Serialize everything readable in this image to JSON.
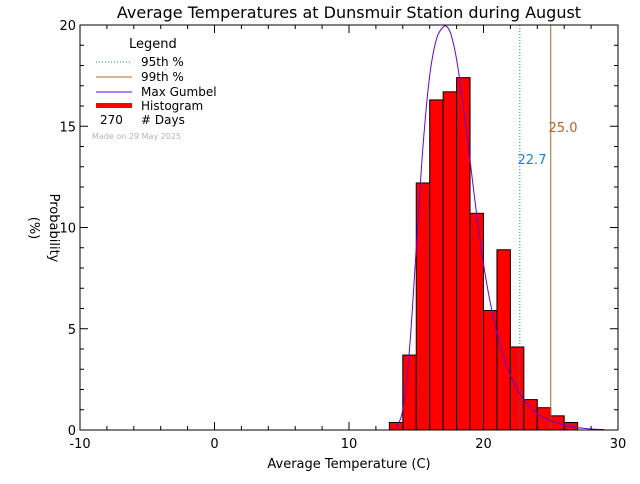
{
  "chart_data": {
    "type": "bar",
    "title": "Average Temperatures at Dunsmuir Station during August",
    "xlabel": "Average Temperature (C)",
    "ylabel_line1": "Probability",
    "ylabel_line2": "(%)",
    "xlim": [
      -10,
      30
    ],
    "ylim": [
      0,
      20
    ],
    "x_ticks": [
      -10,
      0,
      10,
      20,
      30
    ],
    "y_ticks": [
      0,
      5,
      10,
      15,
      20
    ],
    "bin_width": 1,
    "histogram": [
      {
        "x0": 13,
        "x1": 14,
        "value": 0.37
      },
      {
        "x0": 14,
        "x1": 15,
        "value": 3.7
      },
      {
        "x0": 15,
        "x1": 16,
        "value": 12.2
      },
      {
        "x0": 16,
        "x1": 17,
        "value": 16.3
      },
      {
        "x0": 17,
        "x1": 18,
        "value": 16.7
      },
      {
        "x0": 18,
        "x1": 19,
        "value": 17.4
      },
      {
        "x0": 19,
        "x1": 20,
        "value": 10.7
      },
      {
        "x0": 20,
        "x1": 21,
        "value": 5.9
      },
      {
        "x0": 21,
        "x1": 22,
        "value": 8.9
      },
      {
        "x0": 22,
        "x1": 23,
        "value": 4.1
      },
      {
        "x0": 23,
        "x1": 24,
        "value": 1.5
      },
      {
        "x0": 24,
        "x1": 25,
        "value": 1.1
      },
      {
        "x0": 25,
        "x1": 26,
        "value": 0.7
      },
      {
        "x0": 26,
        "x1": 27,
        "value": 0.37
      }
    ],
    "gumbel_curve": {
      "x": [
        13.5,
        14,
        14.5,
        15,
        15.5,
        16,
        16.5,
        17,
        17.3,
        17.6,
        18,
        18.5,
        19,
        19.5,
        20,
        20.5,
        21,
        21.5,
        22,
        22.5,
        23,
        24,
        25,
        26,
        27,
        28,
        29
      ],
      "y": [
        0.1,
        1.0,
        4.0,
        9.0,
        14.0,
        17.5,
        19.3,
        19.9,
        19.9,
        19.5,
        18.3,
        16.0,
        13.3,
        10.6,
        8.2,
        6.3,
        4.8,
        3.6,
        2.7,
        2.0,
        1.5,
        0.8,
        0.45,
        0.25,
        0.12,
        0.05,
        0.02
      ]
    },
    "percentile_95": {
      "value": 22.7,
      "label": "22.7",
      "color": "#1e7be0"
    },
    "percentile_99": {
      "value": 25.0,
      "label": "25.0",
      "color": "#b5641e"
    },
    "colors": {
      "histogram_fill": "#ff0000",
      "gumbel": "#6a00d8",
      "axes": "#000000"
    }
  },
  "legend": {
    "title": "Legend",
    "items": [
      {
        "label": "95th %",
        "style": "dotted",
        "color": "#1e7be0"
      },
      {
        "label": "99th %",
        "style": "solid",
        "color": "#b5641e"
      },
      {
        "label": "Max Gumbel",
        "style": "solid",
        "color": "#6a00d8"
      },
      {
        "label": "Histogram",
        "style": "thick",
        "color": "#ff0000"
      }
    ],
    "count": "270",
    "count_label": "# Days",
    "made_on": "Made on 29 May 2025"
  }
}
